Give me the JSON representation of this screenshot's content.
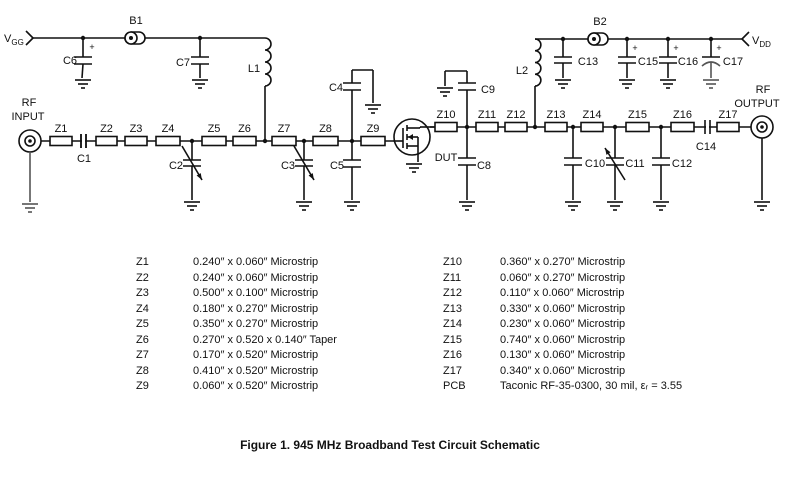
{
  "schematic": {
    "vgg": {
      "main": "V",
      "sub": "GG"
    },
    "vdd": {
      "main": "V",
      "sub": "DD"
    },
    "rf_input": [
      "RF",
      "INPUT"
    ],
    "rf_output": [
      "RF",
      "OUTPUT"
    ],
    "dut": "DUT",
    "beads": {
      "b1": "B1",
      "b2": "B2"
    },
    "inductors": {
      "l1": "L1",
      "l2": "L2"
    },
    "capacitors": {
      "c1": "C1",
      "c2": "C2",
      "c3": "C3",
      "c4": "C4",
      "c5": "C5",
      "c6": "C6",
      "c7": "C7",
      "c8": "C8",
      "c9": "C9",
      "c10": "C10",
      "c11": "C11",
      "c12": "C12",
      "c13": "C13",
      "c14": "C14",
      "c15": "C15",
      "c16": "C16",
      "c17": "C17"
    },
    "plus": "+",
    "lines": {
      "z1": "Z1",
      "z2": "Z2",
      "z3": "Z3",
      "z4": "Z4",
      "z5": "Z5",
      "z6": "Z6",
      "z7": "Z7",
      "z8": "Z8",
      "z9": "Z9",
      "z10": "Z10",
      "z11": "Z11",
      "z12": "Z12",
      "z13": "Z13",
      "z14": "Z14",
      "z15": "Z15",
      "z16": "Z16",
      "z17": "Z17"
    }
  },
  "parts_table": {
    "left": [
      {
        "ref": "Z1",
        "desc": "0.240″ x 0.060″ Microstrip"
      },
      {
        "ref": "Z2",
        "desc": "0.240″ x 0.060″ Microstrip"
      },
      {
        "ref": "Z3",
        "desc": "0.500″ x 0.100″ Microstrip"
      },
      {
        "ref": "Z4",
        "desc": "0.180″ x 0.270″ Microstrip"
      },
      {
        "ref": "Z5",
        "desc": "0.350″ x 0.270″ Microstrip"
      },
      {
        "ref": "Z6",
        "desc": "0.270″ x 0.520 x 0.140″ Taper"
      },
      {
        "ref": "Z7",
        "desc": "0.170″ x 0.520″ Microstrip"
      },
      {
        "ref": "Z8",
        "desc": "0.410″ x 0.520″ Microstrip"
      },
      {
        "ref": "Z9",
        "desc": "0.060″ x 0.520″ Microstrip"
      }
    ],
    "right": [
      {
        "ref": "Z10",
        "desc": "0.360″ x 0.270″ Microstrip"
      },
      {
        "ref": "Z11",
        "desc": "0.060″ x 0.270″ Microstrip"
      },
      {
        "ref": "Z12",
        "desc": "0.110″ x 0.060″ Microstrip"
      },
      {
        "ref": "Z13",
        "desc": "0.330″ x 0.060″ Microstrip"
      },
      {
        "ref": "Z14",
        "desc": "0.230″ x 0.060″ Microstrip"
      },
      {
        "ref": "Z15",
        "desc": "0.740″ x 0.060″ Microstrip"
      },
      {
        "ref": "Z16",
        "desc": "0.130″ x 0.060″ Microstrip"
      },
      {
        "ref": "Z17",
        "desc": "0.340″ x 0.060″ Microstrip"
      },
      {
        "ref": "PCB",
        "desc": "Taconic RF-35-0300, 30 mil, εᵣ = 3.55"
      }
    ]
  },
  "caption": "Figure 1. 945 MHz Broadband Test Circuit Schematic"
}
